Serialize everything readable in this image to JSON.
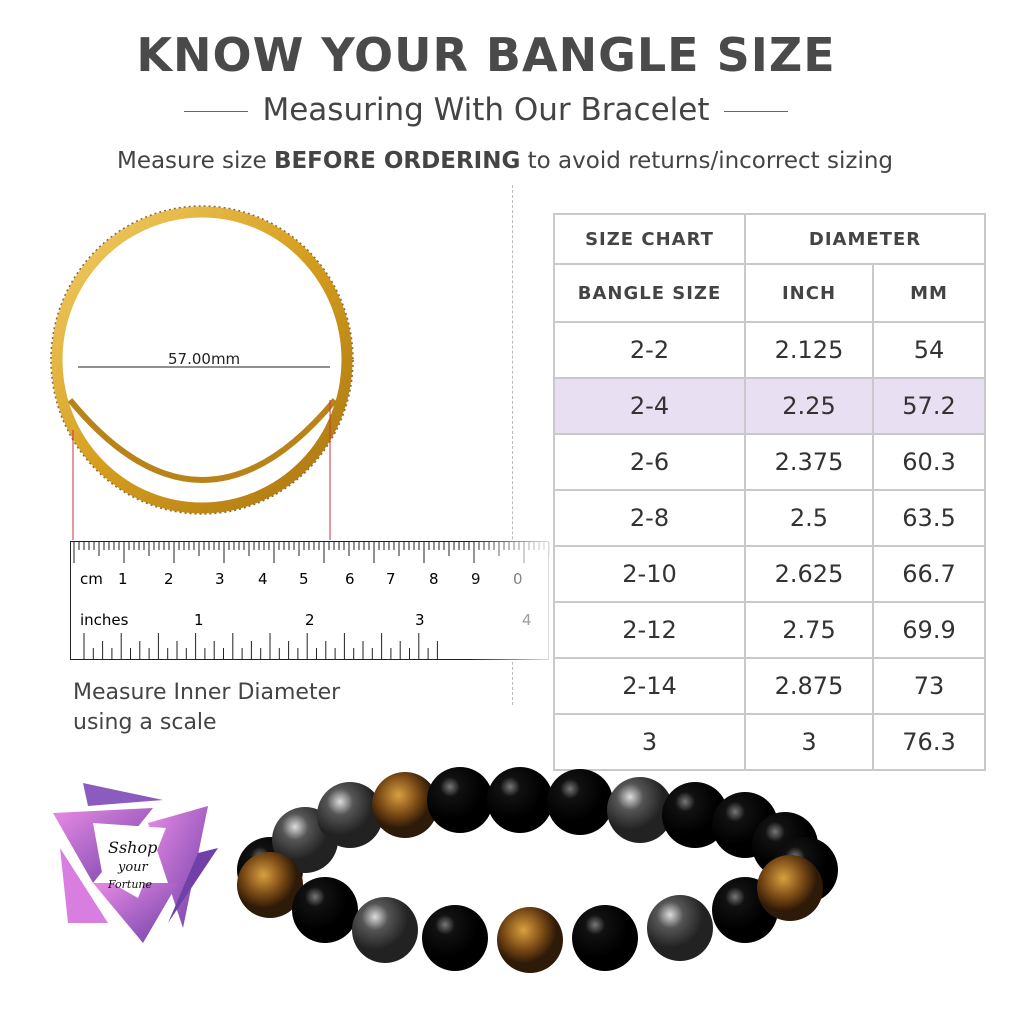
{
  "header": {
    "title": "KNOW YOUR BANGLE SIZE",
    "subtitle": "Measuring With Our Bracelet",
    "instruction_pre": "Measure size ",
    "instruction_bold": "BEFORE ORDERING",
    "instruction_post": " to avoid returns/incorrect sizing"
  },
  "ring": {
    "measurement": "57.00mm"
  },
  "ruler": {
    "cm_label": "cm",
    "cm_ticks": [
      "1",
      "2",
      "3",
      "4",
      "5",
      "6",
      "7",
      "8",
      "9",
      "0"
    ],
    "inch_label": "inches",
    "inch_ticks": [
      "1",
      "2",
      "3",
      "4"
    ]
  },
  "caption": {
    "line1": "Measure Inner Diameter",
    "line2": "using a scale"
  },
  "size_chart": {
    "header_left": "SIZE CHART",
    "header_right": "DIAMETER",
    "columns": [
      "BANGLE SIZE",
      "INCH",
      "MM"
    ],
    "highlight_color": "#e9dff2",
    "rows": [
      {
        "size": "2-2",
        "inch": "2.125",
        "mm": "54"
      },
      {
        "size": "2-4",
        "inch": "2.25",
        "mm": "57.2",
        "highlighted": true
      },
      {
        "size": "2-6",
        "inch": "2.375",
        "mm": "60.3"
      },
      {
        "size": "2-8",
        "inch": "2.5",
        "mm": "63.5"
      },
      {
        "size": "2-10",
        "inch": "2.625",
        "mm": "66.7"
      },
      {
        "size": "2-12",
        "inch": "2.75",
        "mm": "69.9"
      },
      {
        "size": "2-14",
        "inch": "2.875",
        "mm": "73"
      },
      {
        "size": "3",
        "inch": "3",
        "mm": "76.3"
      }
    ]
  },
  "logo": {
    "text": "Sshop your Fortune"
  }
}
